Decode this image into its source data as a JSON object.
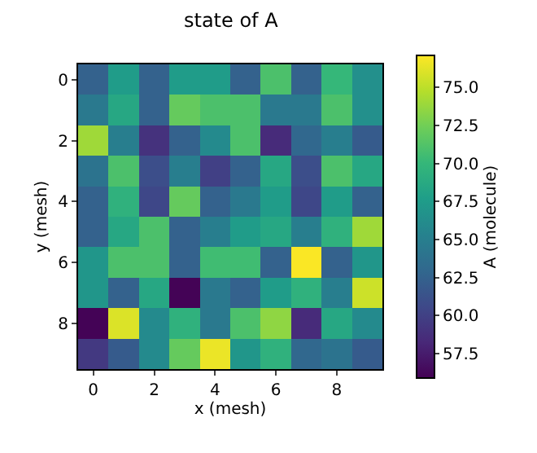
{
  "chart_data": {
    "type": "heatmap",
    "title": "state of A",
    "xlabel": "x (mesh)",
    "ylabel": "y (mesh)",
    "clabel": "A (molecule)",
    "categories": [
      "0",
      null,
      "2",
      null,
      "4",
      null,
      "6",
      null,
      "8",
      null
    ],
    "y_categories": [
      "0",
      null,
      "2",
      null,
      "4",
      null,
      "6",
      null,
      "8",
      null
    ],
    "cells": [
      [
        62.5,
        67.5,
        62.5,
        67.5,
        67.5,
        62.5,
        71,
        62.5,
        70,
        66.5
      ],
      [
        64.5,
        68.5,
        62.5,
        72,
        71,
        71,
        64.5,
        64.5,
        71,
        66.5
      ],
      [
        74,
        65,
        59,
        62.5,
        66,
        71,
        58.5,
        63,
        65,
        62
      ],
      [
        64,
        71,
        61,
        65,
        60,
        62.5,
        68.5,
        61,
        71,
        68.5
      ],
      [
        62.5,
        69.5,
        60.5,
        72,
        62.5,
        64.5,
        67.5,
        60.5,
        67.5,
        62.5
      ],
      [
        62.5,
        68.5,
        71,
        62.5,
        65,
        67.5,
        68.5,
        65,
        69.5,
        74
      ],
      [
        67,
        71,
        71,
        62.5,
        70.5,
        70.5,
        62.5,
        77,
        62.5,
        67
      ],
      [
        67,
        62.5,
        68.5,
        56,
        64.5,
        62.5,
        67.5,
        69.5,
        65,
        75.5
      ],
      [
        56,
        76,
        66,
        69.5,
        64.5,
        71,
        73.5,
        58.5,
        68.5,
        66
      ],
      [
        59.5,
        62,
        66,
        72,
        76.5,
        67,
        69.5,
        63,
        64,
        62
      ]
    ],
    "clim": [
      55.9,
      77.1
    ],
    "cticks": [
      57.5,
      {
        "value": 60,
        "label": "60.0"
      },
      62.5,
      {
        "value": 65,
        "label": "65.0"
      },
      67.5,
      {
        "value": 70,
        "label": "70.0"
      },
      72.5,
      {
        "value": 75,
        "label": "75.0"
      }
    ]
  }
}
